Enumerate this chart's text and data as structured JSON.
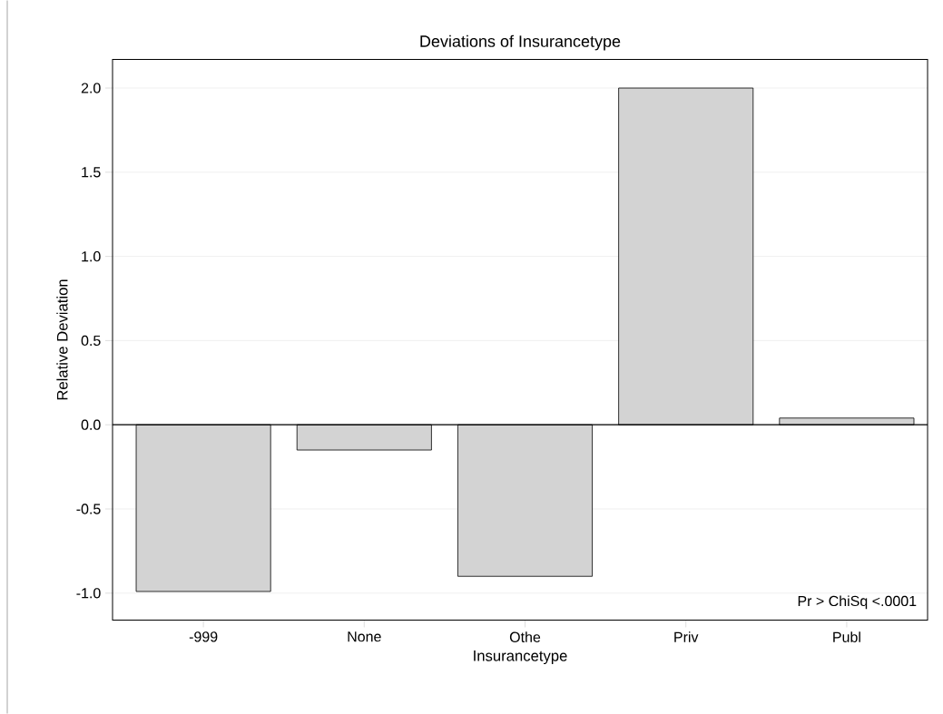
{
  "chart_data": {
    "type": "bar",
    "title": "Deviations of Insurancetype",
    "xlabel": "Insurancetype",
    "ylabel": "Relative Deviation",
    "categories": [
      "-999",
      "None",
      "Othe",
      "Priv",
      "Publ"
    ],
    "values": [
      -0.99,
      -0.15,
      -0.9,
      2.0,
      0.04
    ],
    "color": "#d3d3d3",
    "ylim": [
      -1.16,
      2.17
    ],
    "yticks": [
      {
        "value": -1,
        "label": "-1.0"
      },
      {
        "value": -0.5,
        "label": "-0.5"
      },
      {
        "value": 0,
        "label": "0.0"
      },
      {
        "value": 0.5,
        "label": "0.5"
      },
      {
        "value": 1,
        "label": "1.0"
      },
      {
        "value": 1.5,
        "label": "1.5"
      },
      {
        "value": 2,
        "label": "2.0"
      }
    ],
    "grid": "y",
    "ref_lines": [
      {
        "axis": "y",
        "value": 0,
        "color": "#000000"
      }
    ],
    "annotations": [
      "Pr > ChiSq   <.0001"
    ]
  }
}
